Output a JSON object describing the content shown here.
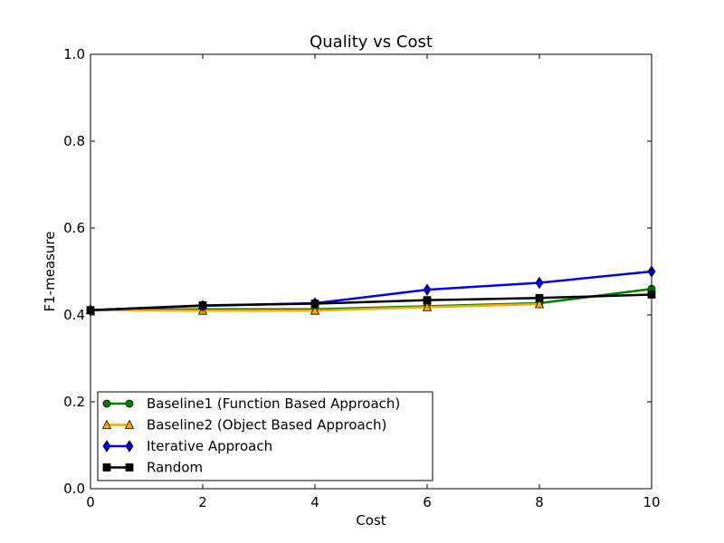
{
  "chart_data": {
    "type": "line",
    "title": "Quality vs Cost",
    "xlabel": "Cost",
    "ylabel": "F1-measure",
    "xlim": [
      0,
      10
    ],
    "ylim": [
      0.0,
      1.0
    ],
    "xticks": [
      "0",
      "2",
      "4",
      "6",
      "8",
      "10"
    ],
    "yticks": [
      "0.0",
      "0.2",
      "0.4",
      "0.6",
      "0.8",
      "1.0"
    ],
    "grid": false,
    "legend_position": "bottom-left",
    "series": [
      {
        "name": "Baseline1 (Function Based Approach)",
        "color": "#008000",
        "marker": "circle",
        "x": [
          0,
          2,
          4,
          6,
          8,
          10
        ],
        "y": [
          0.411,
          0.413,
          0.413,
          0.42,
          0.427,
          0.46
        ]
      },
      {
        "name": "Baseline2 (Object Based Approach)",
        "color": "#f5a800",
        "marker": "triangle",
        "x": [
          0,
          2,
          4,
          6,
          8
        ],
        "y": [
          0.411,
          0.41,
          0.41,
          0.418,
          0.425
        ]
      },
      {
        "name": "Iterative Approach",
        "color": "#0000ee",
        "marker": "diamond",
        "x": [
          0,
          2,
          4,
          6,
          8,
          10
        ],
        "y": [
          0.411,
          0.421,
          0.427,
          0.458,
          0.474,
          0.5
        ]
      },
      {
        "name": "Random",
        "color": "#000000",
        "marker": "square",
        "x": [
          0,
          2,
          4,
          6,
          8,
          10
        ],
        "y": [
          0.411,
          0.422,
          0.426,
          0.434,
          0.439,
          0.447
        ]
      }
    ]
  }
}
